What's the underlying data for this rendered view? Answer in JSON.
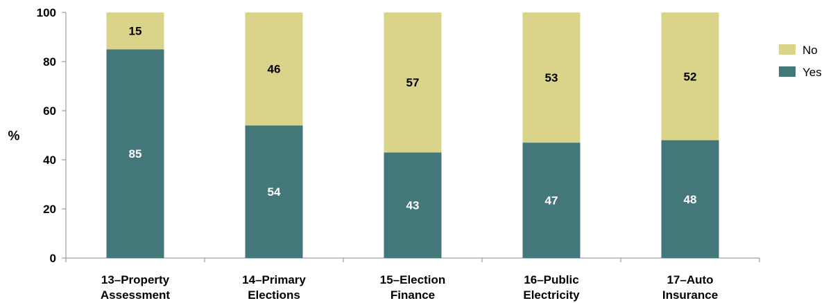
{
  "chart_data": {
    "type": "bar",
    "stacked": true,
    "title": "",
    "xlabel": "",
    "ylabel": "%",
    "ylim": [
      0,
      100
    ],
    "yticks": [
      0,
      20,
      40,
      60,
      80,
      100
    ],
    "categories": [
      [
        "13–Property",
        "Assessment"
      ],
      [
        "14–Primary",
        "Elections"
      ],
      [
        "15–Election",
        "Finance"
      ],
      [
        "16–Public",
        "Electricity"
      ],
      [
        "17–Auto",
        "Insurance"
      ]
    ],
    "series": [
      {
        "name": "Yes",
        "color": "#44777a",
        "label_color": "#ffffff",
        "values": [
          85,
          54,
          43,
          47,
          48
        ]
      },
      {
        "name": "No",
        "color": "#d9d48a",
        "label_color": "#000000",
        "values": [
          15,
          46,
          57,
          53,
          52
        ]
      }
    ],
    "legend": {
      "placement": "right",
      "entries": [
        {
          "name": "No",
          "color": "#d9d48a"
        },
        {
          "name": "Yes",
          "color": "#44777a"
        }
      ]
    },
    "grid": false
  }
}
